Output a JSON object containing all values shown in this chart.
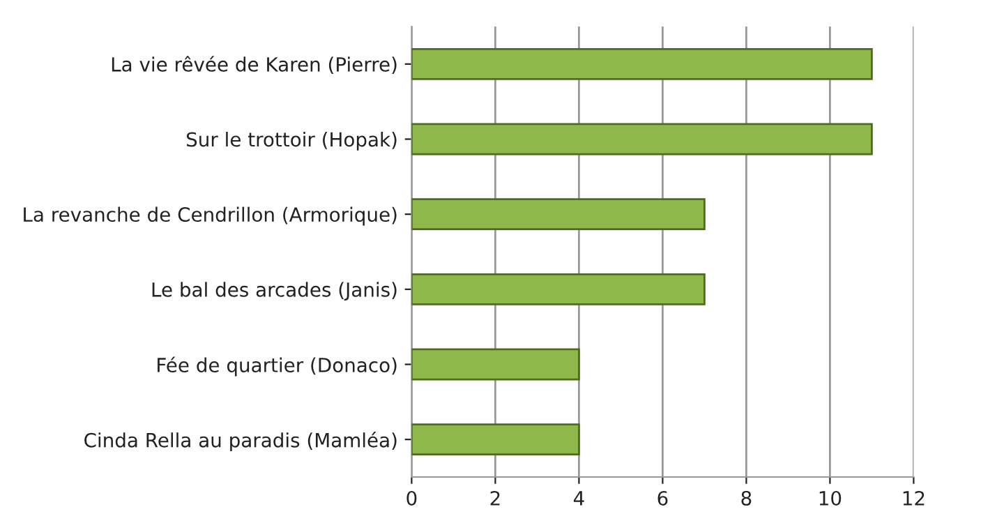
{
  "chart_data": {
    "type": "bar",
    "orientation": "horizontal",
    "categories": [
      "La vie rêvée de Karen (Pierre)",
      "Sur le trottoir (Hopak)",
      "La revanche de Cendrillon (Armorique)",
      "Le bal des arcades (Janis)",
      "Fée de quartier (Donaco)",
      "Cinda Rella au paradis (Mamléa)"
    ],
    "values": [
      11,
      11,
      7,
      7,
      4,
      4
    ],
    "color": "#8fb84a",
    "xlim": [
      0,
      12
    ],
    "xticks": [
      0,
      2,
      4,
      6,
      8,
      10,
      12
    ],
    "grid": "x",
    "legend": false
  }
}
